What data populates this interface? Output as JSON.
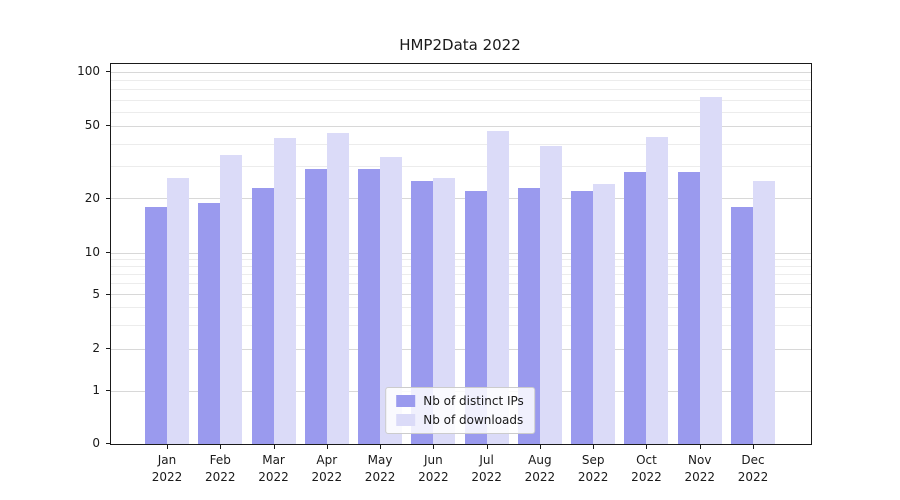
{
  "chart_data": {
    "type": "bar",
    "title": "HMP2Data 2022",
    "categories": [
      {
        "month": "Jan",
        "year": "2022"
      },
      {
        "month": "Feb",
        "year": "2022"
      },
      {
        "month": "Mar",
        "year": "2022"
      },
      {
        "month": "Apr",
        "year": "2022"
      },
      {
        "month": "May",
        "year": "2022"
      },
      {
        "month": "Jun",
        "year": "2022"
      },
      {
        "month": "Jul",
        "year": "2022"
      },
      {
        "month": "Aug",
        "year": "2022"
      },
      {
        "month": "Sep",
        "year": "2022"
      },
      {
        "month": "Oct",
        "year": "2022"
      },
      {
        "month": "Nov",
        "year": "2022"
      },
      {
        "month": "Dec",
        "year": "2022"
      }
    ],
    "series": [
      {
        "name": "Nb of distinct IPs",
        "color": "#9a9aee",
        "values": [
          18,
          19,
          23,
          29,
          29,
          25,
          22,
          23,
          22,
          28,
          28,
          18
        ]
      },
      {
        "name": "Nb of downloads",
        "color": "#dbdbf8",
        "values": [
          26,
          35,
          43,
          46,
          34,
          26,
          47,
          39,
          24,
          44,
          73,
          25
        ]
      }
    ],
    "yscale": "symlog",
    "yticks": [
      0,
      1,
      2,
      5,
      10,
      20,
      50,
      100
    ],
    "minor_yticks": [
      3,
      4,
      6,
      7,
      8,
      9,
      30,
      40,
      60,
      70,
      80,
      90
    ],
    "ylim": [
      0,
      111
    ],
    "xlabel": "",
    "ylabel": "",
    "grid": true,
    "legend_position": "lower center"
  }
}
